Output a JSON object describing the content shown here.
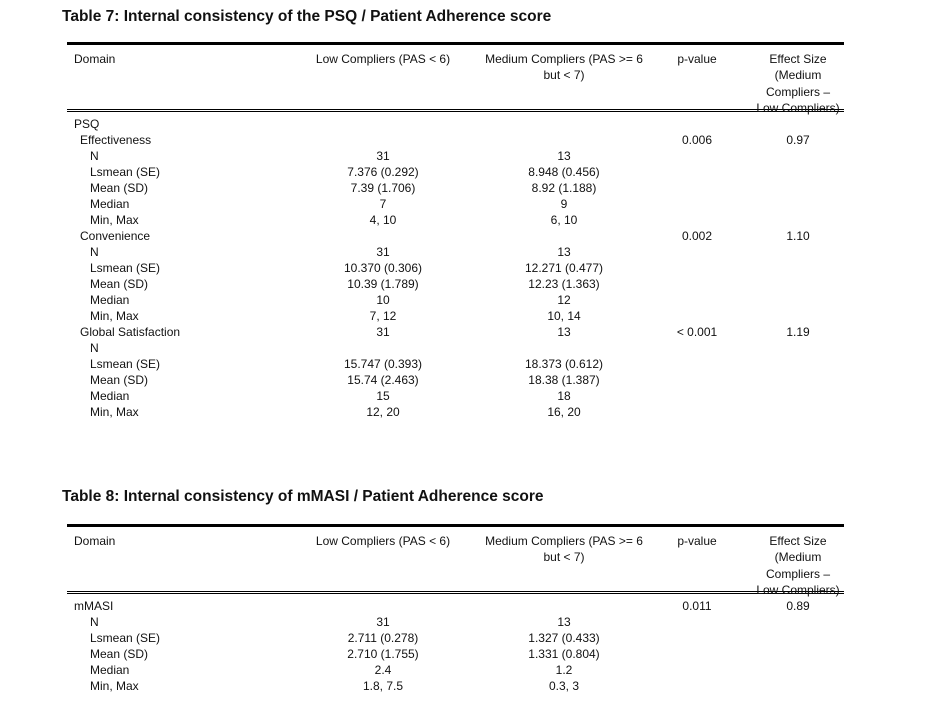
{
  "headers": [
    "Domain",
    "Low Compliers (PAS < 6)",
    "Medium Compliers (PAS >= 6 but < 7)",
    "p-value",
    "Effect Size (Medium Compliers – Low Compliers)"
  ],
  "header_lines": {
    "domain": [
      "Domain"
    ],
    "low": [
      "Low Compliers (PAS < 6)"
    ],
    "medium": [
      "Medium Compliers (PAS >= 6",
      "but < 7)"
    ],
    "p": [
      "p-value"
    ],
    "effect": [
      "Effect Size",
      "(Medium",
      "Compliers –",
      "Low Compliers)"
    ]
  },
  "tables": [
    {
      "title": "Table 7: Internal consistency of the PSQ / Patient Adherence score",
      "rows": [
        {
          "indent": 0,
          "cells": [
            "PSQ",
            "",
            "",
            "",
            ""
          ]
        },
        {
          "indent": 1,
          "cells": [
            "Effectiveness",
            "",
            "",
            "0.006",
            "0.97"
          ]
        },
        {
          "indent": 2,
          "cells": [
            "N",
            "31",
            "13",
            "",
            ""
          ]
        },
        {
          "indent": 2,
          "cells": [
            "Lsmean (SE)",
            "7.376 (0.292)",
            "8.948 (0.456)",
            "",
            ""
          ]
        },
        {
          "indent": 2,
          "cells": [
            "Mean (SD)",
            "7.39 (1.706)",
            "8.92 (1.188)",
            "",
            ""
          ]
        },
        {
          "indent": 2,
          "cells": [
            "Median",
            "7",
            "9",
            "",
            ""
          ]
        },
        {
          "indent": 2,
          "cells": [
            "Min, Max",
            "4, 10",
            "6, 10",
            "",
            ""
          ]
        },
        {
          "indent": 1,
          "cells": [
            "Convenience",
            "",
            "",
            "0.002",
            "1.10"
          ]
        },
        {
          "indent": 2,
          "cells": [
            "N",
            "31",
            "13",
            "",
            ""
          ]
        },
        {
          "indent": 2,
          "cells": [
            "Lsmean (SE)",
            "10.370 (0.306)",
            "12.271 (0.477)",
            "",
            ""
          ]
        },
        {
          "indent": 2,
          "cells": [
            "Mean (SD)",
            "10.39 (1.789)",
            "12.23 (1.363)",
            "",
            ""
          ]
        },
        {
          "indent": 2,
          "cells": [
            "Median",
            "10",
            "12",
            "",
            ""
          ]
        },
        {
          "indent": 2,
          "cells": [
            "Min, Max",
            "7, 12",
            "10, 14",
            "",
            ""
          ]
        },
        {
          "indent": 1,
          "cells": [
            "Global Satisfaction",
            "31",
            "13",
            "< 0.001",
            "1.19"
          ]
        },
        {
          "indent": 2,
          "cells": [
            "N",
            "",
            "",
            "",
            ""
          ]
        },
        {
          "indent": 2,
          "cells": [
            "Lsmean (SE)",
            "15.747 (0.393)",
            "18.373 (0.612)",
            "",
            ""
          ]
        },
        {
          "indent": 2,
          "cells": [
            "Mean (SD)",
            "15.74 (2.463)",
            "18.38 (1.387)",
            "",
            ""
          ]
        },
        {
          "indent": 2,
          "cells": [
            "Median",
            "15",
            "18",
            "",
            ""
          ]
        },
        {
          "indent": 2,
          "cells": [
            "Min, Max",
            "12, 20",
            "16, 20",
            "",
            ""
          ]
        }
      ]
    },
    {
      "title": "Table 8: Internal consistency of mMASI / Patient Adherence score",
      "rows": [
        {
          "indent": 0,
          "cells": [
            "mMASI",
            "",
            "",
            "0.011",
            "0.89"
          ]
        },
        {
          "indent": 2,
          "cells": [
            "N",
            "31",
            "13",
            "",
            ""
          ]
        },
        {
          "indent": 2,
          "cells": [
            "Lsmean (SE)",
            "2.711 (0.278)",
            "1.327 (0.433)",
            "",
            ""
          ]
        },
        {
          "indent": 2,
          "cells": [
            "Mean (SD)",
            "2.710 (1.755)",
            "1.331 (0.804)",
            "",
            ""
          ]
        },
        {
          "indent": 2,
          "cells": [
            "Median",
            "2.4",
            "1.2",
            "",
            ""
          ]
        },
        {
          "indent": 2,
          "cells": [
            "Min, Max",
            "1.8, 7.5",
            "0.3, 3",
            "",
            ""
          ]
        }
      ]
    }
  ]
}
